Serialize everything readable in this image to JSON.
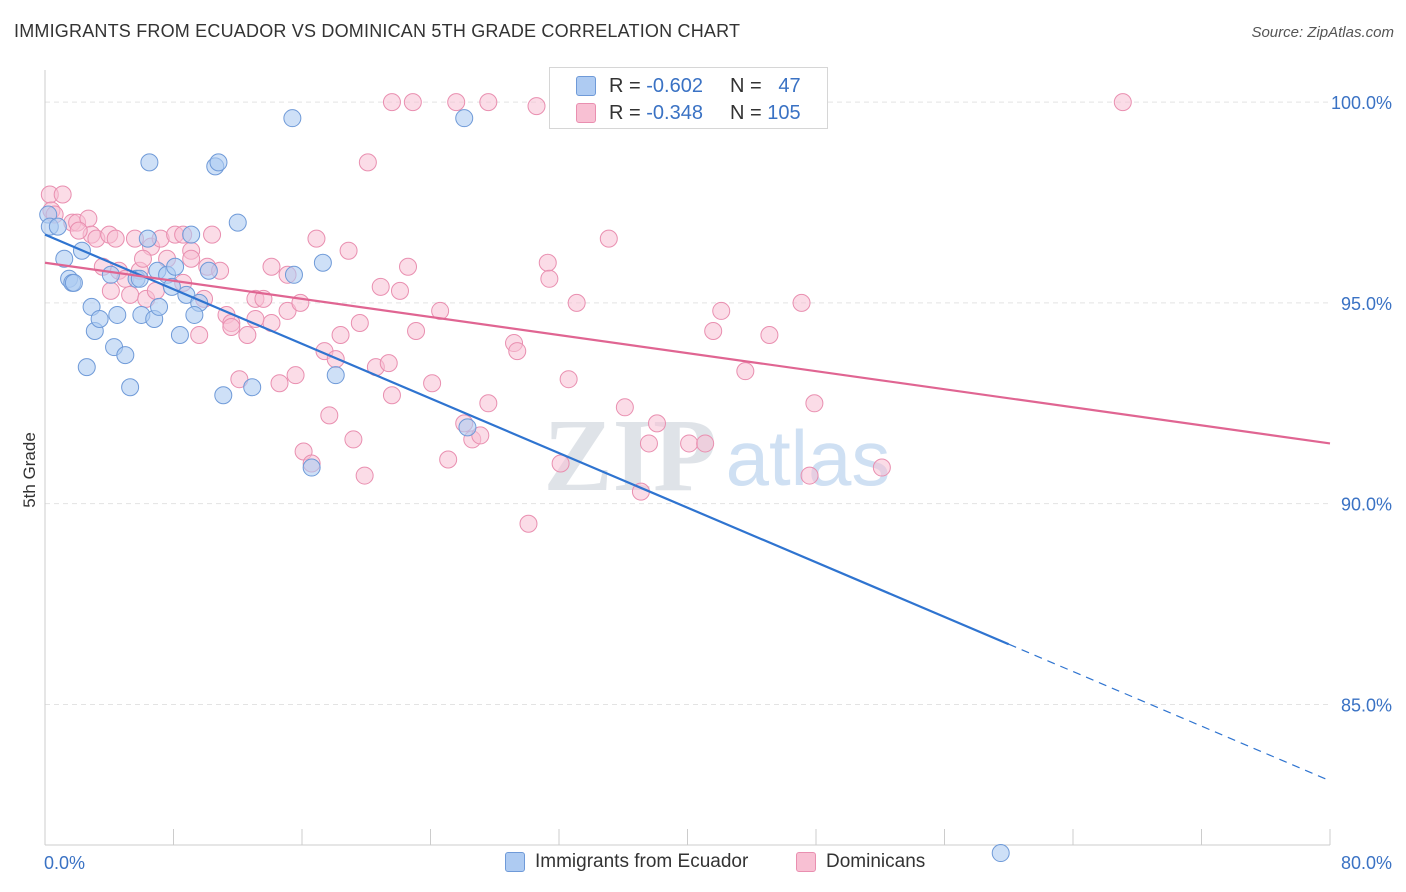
{
  "header": {
    "title": "IMMIGRANTS FROM ECUADOR VS DOMINICAN 5TH GRADE CORRELATION CHART",
    "source": "Source: ZipAtlas.com"
  },
  "legend": {
    "ecuador": {
      "r_label": "R = ",
      "r_value": "-0.602",
      "n_label": "N = ",
      "n_value": "47"
    },
    "dominican": {
      "r_label": "R = ",
      "r_value": "-0.348",
      "n_label": "N = ",
      "n_value": "105"
    }
  },
  "watermark": {
    "zip": "ZIP",
    "atlas": "atlas"
  },
  "chart_data": {
    "type": "scatter",
    "ylabel": "5th Grade",
    "xlim": [
      0,
      80
    ],
    "ylim": [
      81.5,
      100.8
    ],
    "x_tick_labels": [
      "0.0%",
      "80.0%"
    ],
    "y_ticks": [
      85,
      90,
      95,
      100
    ],
    "y_tick_labels": [
      "85.0%",
      "90.0%",
      "95.0%",
      "100.0%"
    ],
    "grid": true,
    "legend_placement": "top-center",
    "colors": {
      "ecuador_fill": "#aecbf2",
      "ecuador_stroke": "#6f9ad8",
      "ecuador_line": "#2f74d0",
      "dominican_fill": "#f8c0d3",
      "dominican_stroke": "#e98fb0",
      "dominican_line": "#e06592",
      "tick_label": "#3a72c4",
      "grid": "#e3e3e3"
    },
    "series": [
      {
        "name": "Immigrants from Ecuador",
        "trend": {
          "x0": 0,
          "y0": 96.7,
          "x1": 60,
          "y1": 86.5,
          "dash_to_x": 80,
          "dash_to_y": 83.1
        },
        "points": [
          [
            0.2,
            97.2
          ],
          [
            0.3,
            96.9
          ],
          [
            0.8,
            96.9
          ],
          [
            1.2,
            96.1
          ],
          [
            1.5,
            95.6
          ],
          [
            1.7,
            95.5
          ],
          [
            1.8,
            95.5
          ],
          [
            2.3,
            96.3
          ],
          [
            2.9,
            94.9
          ],
          [
            3.1,
            94.3
          ],
          [
            3.4,
            94.6
          ],
          [
            2.6,
            93.4
          ],
          [
            4.1,
            95.7
          ],
          [
            4.3,
            93.9
          ],
          [
            4.5,
            94.7
          ],
          [
            5.0,
            93.7
          ],
          [
            5.3,
            92.9
          ],
          [
            5.7,
            95.6
          ],
          [
            5.9,
            95.6
          ],
          [
            6.0,
            94.7
          ],
          [
            6.8,
            94.6
          ],
          [
            7.1,
            94.9
          ],
          [
            6.4,
            96.6
          ],
          [
            7.0,
            95.8
          ],
          [
            7.6,
            95.7
          ],
          [
            7.9,
            95.4
          ],
          [
            8.1,
            95.9
          ],
          [
            8.4,
            94.2
          ],
          [
            8.8,
            95.2
          ],
          [
            9.1,
            96.7
          ],
          [
            9.6,
            95.0
          ],
          [
            9.3,
            94.7
          ],
          [
            10.2,
            95.8
          ],
          [
            11.1,
            92.7
          ],
          [
            12.0,
            97.0
          ],
          [
            12.9,
            92.9
          ],
          [
            15.5,
            95.7
          ],
          [
            16.6,
            90.9
          ],
          [
            17.3,
            96.0
          ],
          [
            18.1,
            93.2
          ],
          [
            26.3,
            91.9
          ],
          [
            6.5,
            98.5
          ],
          [
            10.6,
            98.4
          ],
          [
            10.8,
            98.5
          ],
          [
            15.4,
            99.6
          ],
          [
            26.1,
            99.6
          ],
          [
            59.5,
            81.3
          ]
        ]
      },
      {
        "name": "Dominicans",
        "trend": {
          "x0": 0,
          "y0": 96.0,
          "x1": 80,
          "y1": 91.5
        },
        "points": [
          [
            0.3,
            97.7
          ],
          [
            0.4,
            97.3
          ],
          [
            0.6,
            97.2
          ],
          [
            1.1,
            97.7
          ],
          [
            1.7,
            97.0
          ],
          [
            2.0,
            97.0
          ],
          [
            2.7,
            97.1
          ],
          [
            2.9,
            96.7
          ],
          [
            3.2,
            96.6
          ],
          [
            3.6,
            95.9
          ],
          [
            4.0,
            96.7
          ],
          [
            4.4,
            96.6
          ],
          [
            4.6,
            95.8
          ],
          [
            5.0,
            95.6
          ],
          [
            5.3,
            95.2
          ],
          [
            5.6,
            96.6
          ],
          [
            5.9,
            95.8
          ],
          [
            6.3,
            95.1
          ],
          [
            6.6,
            96.4
          ],
          [
            6.9,
            95.3
          ],
          [
            7.2,
            96.6
          ],
          [
            7.6,
            96.1
          ],
          [
            8.1,
            96.7
          ],
          [
            8.6,
            95.5
          ],
          [
            9.1,
            96.3
          ],
          [
            9.6,
            94.2
          ],
          [
            10.1,
            95.9
          ],
          [
            10.4,
            96.7
          ],
          [
            10.9,
            95.8
          ],
          [
            11.3,
            94.7
          ],
          [
            11.6,
            94.5
          ],
          [
            12.1,
            93.1
          ],
          [
            12.6,
            94.2
          ],
          [
            13.1,
            95.1
          ],
          [
            13.6,
            95.1
          ],
          [
            14.1,
            94.5
          ],
          [
            14.6,
            93.0
          ],
          [
            15.1,
            94.8
          ],
          [
            15.6,
            93.2
          ],
          [
            15.9,
            95.0
          ],
          [
            16.1,
            91.3
          ],
          [
            16.6,
            91.0
          ],
          [
            16.9,
            96.6
          ],
          [
            17.4,
            93.8
          ],
          [
            17.7,
            92.2
          ],
          [
            18.1,
            93.6
          ],
          [
            18.4,
            94.2
          ],
          [
            18.9,
            96.3
          ],
          [
            19.2,
            91.6
          ],
          [
            19.6,
            94.5
          ],
          [
            19.9,
            90.7
          ],
          [
            20.6,
            93.4
          ],
          [
            20.9,
            95.4
          ],
          [
            21.4,
            93.5
          ],
          [
            21.6,
            92.7
          ],
          [
            22.1,
            95.3
          ],
          [
            22.6,
            95.9
          ],
          [
            23.1,
            94.3
          ],
          [
            24.1,
            93.0
          ],
          [
            24.6,
            94.8
          ],
          [
            25.1,
            91.1
          ],
          [
            26.1,
            92.0
          ],
          [
            26.6,
            91.6
          ],
          [
            27.1,
            91.7
          ],
          [
            27.6,
            92.5
          ],
          [
            29.2,
            94.0
          ],
          [
            29.4,
            93.8
          ],
          [
            30.1,
            89.5
          ],
          [
            30.6,
            99.9
          ],
          [
            31.3,
            96.0
          ],
          [
            31.4,
            95.6
          ],
          [
            32.1,
            91.0
          ],
          [
            32.6,
            93.1
          ],
          [
            33.1,
            95.0
          ],
          [
            35.1,
            96.6
          ],
          [
            36.1,
            92.4
          ],
          [
            37.1,
            90.3
          ],
          [
            37.6,
            91.5
          ],
          [
            38.1,
            92.0
          ],
          [
            40.1,
            91.5
          ],
          [
            41.1,
            91.5
          ],
          [
            41.6,
            94.3
          ],
          [
            42.1,
            94.8
          ],
          [
            43.6,
            93.3
          ],
          [
            45.1,
            94.2
          ],
          [
            47.1,
            95.0
          ],
          [
            47.6,
            90.7
          ],
          [
            47.9,
            92.5
          ],
          [
            52.1,
            90.9
          ],
          [
            20.1,
            98.5
          ],
          [
            21.6,
            100.0
          ],
          [
            22.9,
            100.0
          ],
          [
            25.6,
            100.0
          ],
          [
            27.6,
            100.0
          ],
          [
            67.1,
            100.0
          ],
          [
            14.1,
            95.9
          ],
          [
            15.1,
            95.7
          ],
          [
            13.1,
            94.6
          ],
          [
            11.6,
            94.4
          ],
          [
            6.1,
            96.1
          ],
          [
            4.1,
            95.3
          ],
          [
            9.9,
            95.1
          ],
          [
            8.6,
            96.7
          ],
          [
            9.1,
            96.1
          ],
          [
            2.1,
            96.8
          ]
        ]
      }
    ]
  }
}
